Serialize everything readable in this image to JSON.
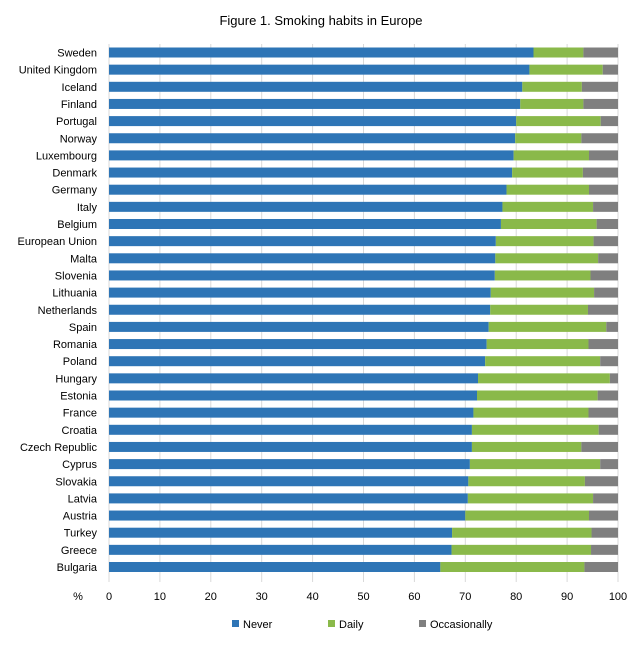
{
  "chart_data": {
    "type": "bar",
    "orientation": "horizontal",
    "stacked": true,
    "title": "Figure 1. Smoking habits in Europe",
    "xlabel": "%",
    "xlim": [
      0,
      100
    ],
    "xticks": [
      0,
      10,
      20,
      30,
      40,
      50,
      60,
      70,
      80,
      90,
      100
    ],
    "grid": true,
    "legend_position": "bottom",
    "categories": [
      "Sweden",
      "United Kingdom",
      "Iceland",
      "Finland",
      "Portugal",
      "Norway",
      "Luxembourg",
      "Denmark",
      "Germany",
      "Italy",
      "Belgium",
      "European Union",
      "Malta",
      "Slovenia",
      "Lithuania",
      "Netherlands",
      "Spain",
      "Romania",
      "Poland",
      "Hungary",
      "Estonia",
      "France",
      "Croatia",
      "Czech Republic",
      "Cyprus",
      "Slovakia",
      "Latvia",
      "Austria",
      "Turkey",
      "Greece",
      "Bulgaria"
    ],
    "series": [
      {
        "name": "Never",
        "color": "#2e75b6",
        "values": [
          83.4,
          82.6,
          81.2,
          80.8,
          80.0,
          79.8,
          79.5,
          79.2,
          78.1,
          77.3,
          77.0,
          76.0,
          75.9,
          75.8,
          75.0,
          74.9,
          74.6,
          74.2,
          73.9,
          72.5,
          72.3,
          71.6,
          71.3,
          71.3,
          70.9,
          70.6,
          70.5,
          70.0,
          67.4,
          67.3,
          65.1
        ]
      },
      {
        "name": "Daily",
        "color": "#8ab94a",
        "values": [
          9.8,
          14.4,
          11.7,
          12.4,
          16.6,
          13.0,
          14.8,
          13.9,
          16.2,
          17.8,
          18.8,
          19.2,
          20.2,
          18.8,
          20.3,
          19.2,
          23.1,
          20.0,
          22.6,
          25.9,
          23.7,
          22.6,
          24.9,
          21.5,
          25.6,
          22.9,
          24.6,
          24.3,
          27.4,
          27.4,
          28.3
        ]
      },
      {
        "name": "Occasionally",
        "color": "#7f7f7f",
        "values": [
          6.8,
          3.0,
          7.1,
          6.8,
          3.4,
          7.2,
          5.7,
          6.9,
          5.7,
          4.9,
          4.2,
          4.8,
          3.9,
          5.4,
          4.7,
          5.9,
          2.3,
          5.8,
          3.5,
          1.6,
          4.0,
          5.8,
          3.8,
          7.2,
          3.5,
          6.5,
          4.9,
          5.7,
          5.2,
          5.3,
          6.6
        ]
      }
    ]
  }
}
